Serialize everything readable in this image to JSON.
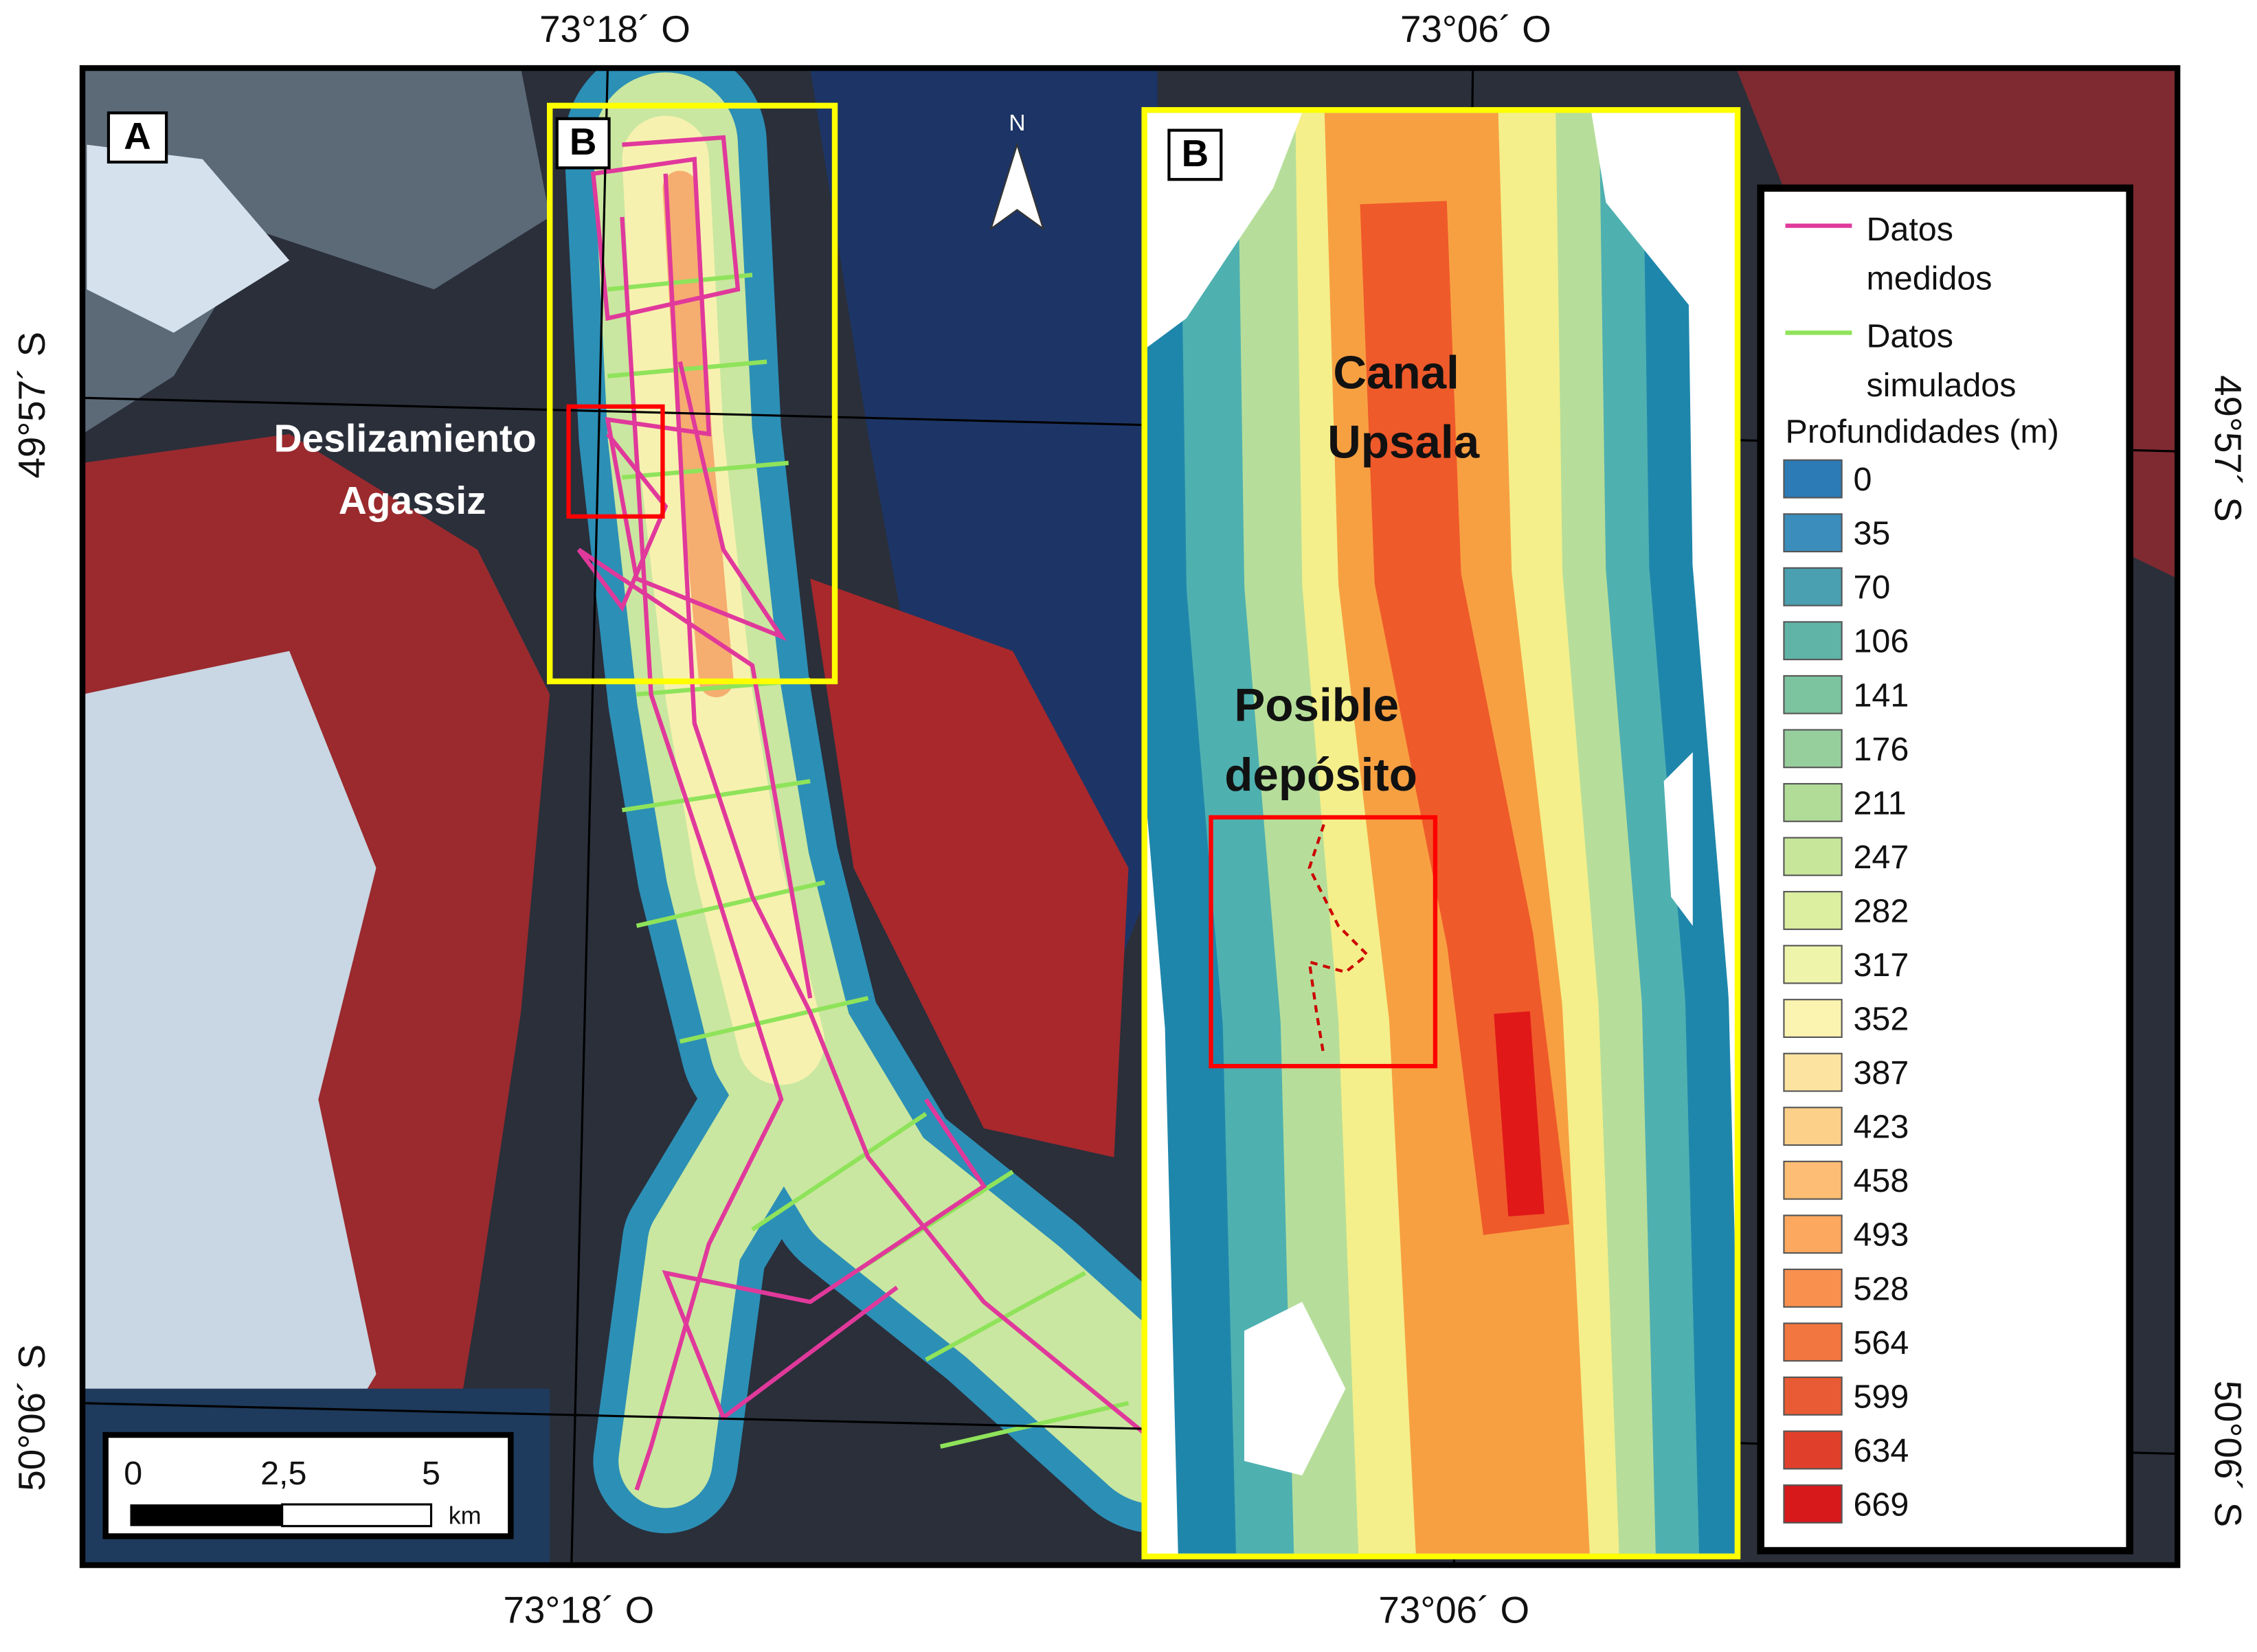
{
  "map": {
    "coordinates": {
      "top": [
        "73°18´ O",
        "73°06´ O"
      ],
      "bottom": [
        "73°18´ O",
        "73°06´ O"
      ],
      "left": [
        "49°57´ S",
        "50°06´ S"
      ],
      "right": [
        "49°57´ S",
        "50°06´ S"
      ]
    },
    "panels": {
      "overview": "A",
      "box": "B",
      "inset": "B"
    },
    "north": "N",
    "annotations": {
      "slide": [
        "Deslizamiento",
        "Agassiz"
      ],
      "channel": [
        "Canal",
        "Upsala"
      ],
      "deposit": [
        "Posible",
        "depósito"
      ]
    },
    "scale_bar": {
      "ticks": [
        "0",
        "2,5",
        "5"
      ],
      "unit": "km"
    }
  },
  "legend": {
    "lines": [
      {
        "label": [
          "Datos",
          "medidos"
        ],
        "color": "#e0399b"
      },
      {
        "label": [
          "Datos",
          "simulados"
        ],
        "color": "#8fe35a"
      }
    ],
    "title": "Profundidades (m)",
    "items": [
      {
        "value": 0,
        "color": "#2c7bb6"
      },
      {
        "value": 35,
        "color": "#3b8dbb"
      },
      {
        "value": 70,
        "color": "#4a9fb0"
      },
      {
        "value": 106,
        "color": "#5fb3a7"
      },
      {
        "value": 141,
        "color": "#7cc3a0"
      },
      {
        "value": 176,
        "color": "#96cf9c"
      },
      {
        "value": 211,
        "color": "#b0dc98"
      },
      {
        "value": 247,
        "color": "#c7e69a"
      },
      {
        "value": 282,
        "color": "#dcefa0"
      },
      {
        "value": 317,
        "color": "#eef5aa"
      },
      {
        "value": 352,
        "color": "#fbf3b0"
      },
      {
        "value": 387,
        "color": "#fde3a0"
      },
      {
        "value": 423,
        "color": "#fdd08a"
      },
      {
        "value": 458,
        "color": "#fdbd74"
      },
      {
        "value": 493,
        "color": "#fca85f"
      },
      {
        "value": 528,
        "color": "#f9904e"
      },
      {
        "value": 564,
        "color": "#f2763f"
      },
      {
        "value": 599,
        "color": "#e95b34"
      },
      {
        "value": 634,
        "color": "#e0402b"
      },
      {
        "value": 669,
        "color": "#d7191c"
      }
    ]
  }
}
